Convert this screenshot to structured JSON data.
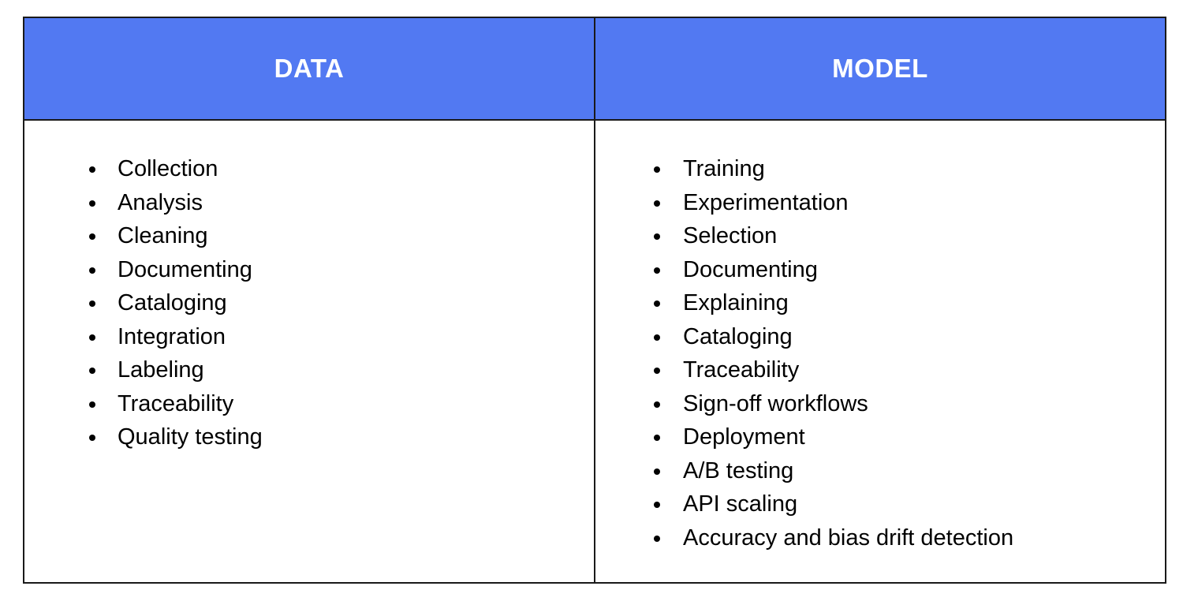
{
  "header_color": "#5279F2",
  "columns": [
    {
      "title": "DATA",
      "items": [
        "Collection",
        "Analysis",
        "Cleaning",
        "Documenting",
        "Cataloging",
        "Integration",
        "Labeling",
        "Traceability",
        "Quality testing"
      ]
    },
    {
      "title": "MODEL",
      "items": [
        "Training",
        "Experimentation",
        "Selection",
        "Documenting",
        "Explaining",
        "Cataloging",
        "Traceability",
        "Sign-off workflows",
        "Deployment",
        "A/B testing",
        "API scaling",
        "Accuracy and bias drift detection"
      ]
    }
  ]
}
